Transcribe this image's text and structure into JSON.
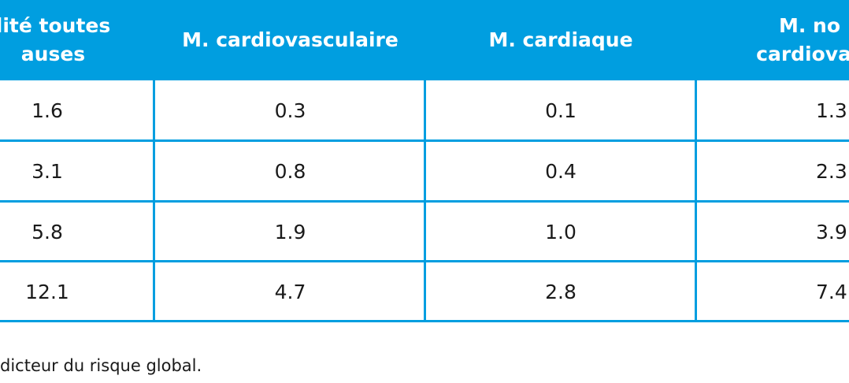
{
  "table": {
    "headers": [
      "lité toutes\nauses",
      "M. cardiovasculaire",
      "M. cardiaque",
      "M. no\ncardiovas"
    ],
    "rows": [
      [
        "1.6",
        "0.3",
        "0.1",
        "1.3"
      ],
      [
        "3.1",
        "0.8",
        "0.4",
        "2.3"
      ],
      [
        "5.8",
        "1.9",
        "1.0",
        "3.9"
      ],
      [
        "12.1",
        "4.7",
        "2.8",
        "7.4"
      ]
    ]
  },
  "footnote": "dicteur du risque global.",
  "colors": {
    "accent": "#009ee0",
    "header_text": "#ffffff"
  }
}
